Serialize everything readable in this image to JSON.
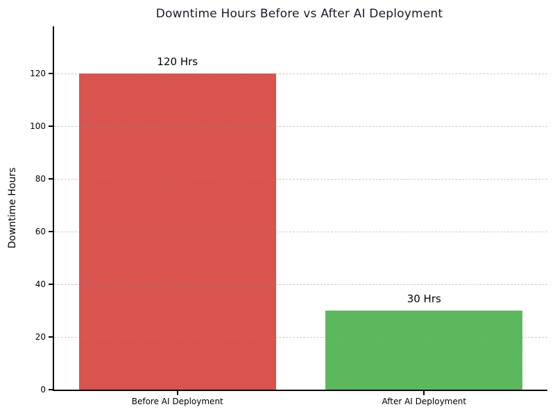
{
  "chart_data": {
    "type": "bar",
    "title": "Downtime Hours Before vs After AI Deployment",
    "title_color": "#1a1a2e",
    "categories": [
      "Before AI Deployment",
      "After AI Deployment"
    ],
    "values": [
      120,
      30
    ],
    "bar_labels": [
      "120 Hrs",
      "30 Hrs"
    ],
    "bar_colors": [
      "#d9534f",
      "#5cb85c"
    ],
    "xlabel": "",
    "ylabel": "Downtime Hours",
    "ylim": [
      0,
      138
    ],
    "yticks": [
      0,
      20,
      40,
      60,
      80,
      100,
      120
    ],
    "grid": "horizontal-dashed",
    "grid_color": "#cfcfcf",
    "legend": "none",
    "bar_width_fraction": 0.8
  }
}
